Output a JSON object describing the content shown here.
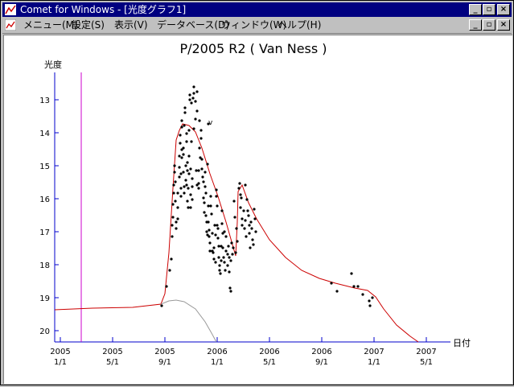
{
  "window": {
    "title": "Comet for Windows - [光度グラフ1]",
    "min_glyph": "_",
    "restore_glyph": "▫",
    "close_glyph": "×"
  },
  "menu": [
    {
      "label": "メニュー(M)"
    },
    {
      "label": "設定(S)"
    },
    {
      "label": "表示(V)"
    },
    {
      "label": "データベース(D)"
    },
    {
      "label": "ウィンドウ(W)"
    },
    {
      "label": "ヘルプ(H)"
    }
  ],
  "chart_data": {
    "type": "scatter",
    "title": "P/2005 R2 ( Van Ness )",
    "ylabel": "光度",
    "xlabel": "日付",
    "y_inverted": true,
    "ylim": [
      12.5,
      20.2
    ],
    "y_ticks": [
      "13",
      "14",
      "15",
      "16",
      "17",
      "18",
      "19",
      "20"
    ],
    "x_ticks": [
      {
        "year": "2005",
        "md": "1/1"
      },
      {
        "year": "2005",
        "md": "5/1"
      },
      {
        "year": "2005",
        "md": "9/1"
      },
      {
        "year": "2006",
        "md": "1/1"
      },
      {
        "year": "2006",
        "md": "5/1"
      },
      {
        "year": "2006",
        "md": "9/1"
      },
      {
        "year": "2007",
        "md": "1/1"
      },
      {
        "year": "2007",
        "md": "5/1"
      }
    ],
    "marker_v": "v",
    "grid": false,
    "colors": {
      "model": "#cc0000",
      "axis": "#0000cc",
      "vline": "#cc00cc",
      "secondary": "#999999"
    }
  }
}
